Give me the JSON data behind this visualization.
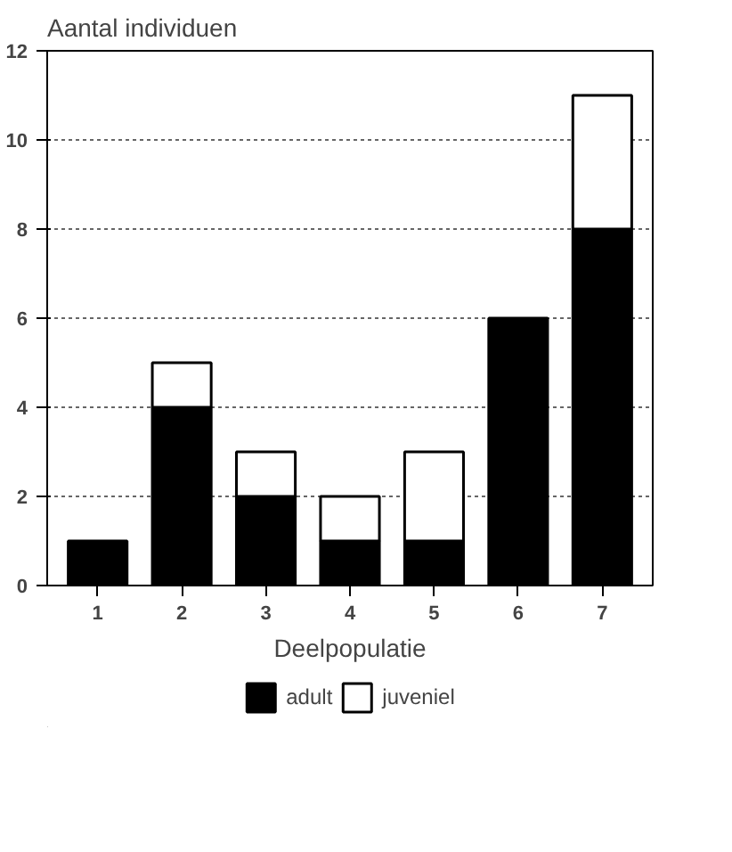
{
  "chart_data": {
    "type": "bar",
    "stacked": true,
    "ylabel": "Aantal individuen",
    "xlabel": "Deelpopulatie",
    "categories": [
      "1",
      "2",
      "3",
      "4",
      "5",
      "6",
      "7"
    ],
    "series": [
      {
        "name": "adult",
        "color": "#000000",
        "values": [
          1,
          4,
          2,
          1,
          1,
          6,
          8
        ]
      },
      {
        "name": "juveniel",
        "color": "#ffffff",
        "values": [
          0,
          1,
          1,
          1,
          2,
          0,
          3
        ]
      }
    ],
    "ylim": [
      0,
      12
    ],
    "yticks": [
      0,
      2,
      4,
      6,
      8,
      10,
      12
    ],
    "grid": "y",
    "legend": "bottom"
  }
}
